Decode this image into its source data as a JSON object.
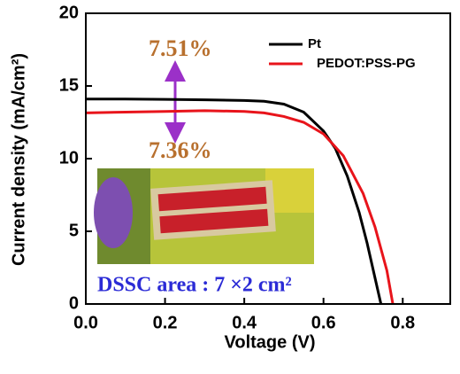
{
  "chart_data": {
    "type": "line",
    "x_label": "Voltage (V)",
    "y_label": "Current density (mA/cm²)",
    "xlim": [
      0,
      0.92
    ],
    "ylim": [
      0,
      20
    ],
    "xticks": [
      {
        "value": 0,
        "label": "0.0"
      },
      0.2,
      0.4,
      0.6,
      0.8
    ],
    "yticks": [
      0,
      5,
      10,
      15,
      20
    ],
    "legend": "upper right",
    "series": [
      {
        "name": "Pt",
        "color": "#000000",
        "x": [
          0,
          0.1,
          0.2,
          0.3,
          0.4,
          0.45,
          0.5,
          0.55,
          0.6,
          0.63,
          0.66,
          0.69,
          0.71,
          0.73,
          0.745
        ],
        "values": [
          14.1,
          14.1,
          14.08,
          14.05,
          14.0,
          13.95,
          13.75,
          13.2,
          11.9,
          10.7,
          8.8,
          6.3,
          4.2,
          1.8,
          0
        ]
      },
      {
        "name": "PEDOT:PSS-PG",
        "color": "#e8141b",
        "x": [
          0,
          0.1,
          0.2,
          0.3,
          0.4,
          0.45,
          0.5,
          0.55,
          0.6,
          0.65,
          0.7,
          0.73,
          0.76,
          0.775
        ],
        "values": [
          13.15,
          13.2,
          13.25,
          13.3,
          13.25,
          13.15,
          12.9,
          12.5,
          11.7,
          10.2,
          7.6,
          5.3,
          2.3,
          0
        ]
      }
    ],
    "annotations": [
      "7.51%",
      "7.36%",
      "DSSC area : 7 ×2 cm²"
    ]
  }
}
